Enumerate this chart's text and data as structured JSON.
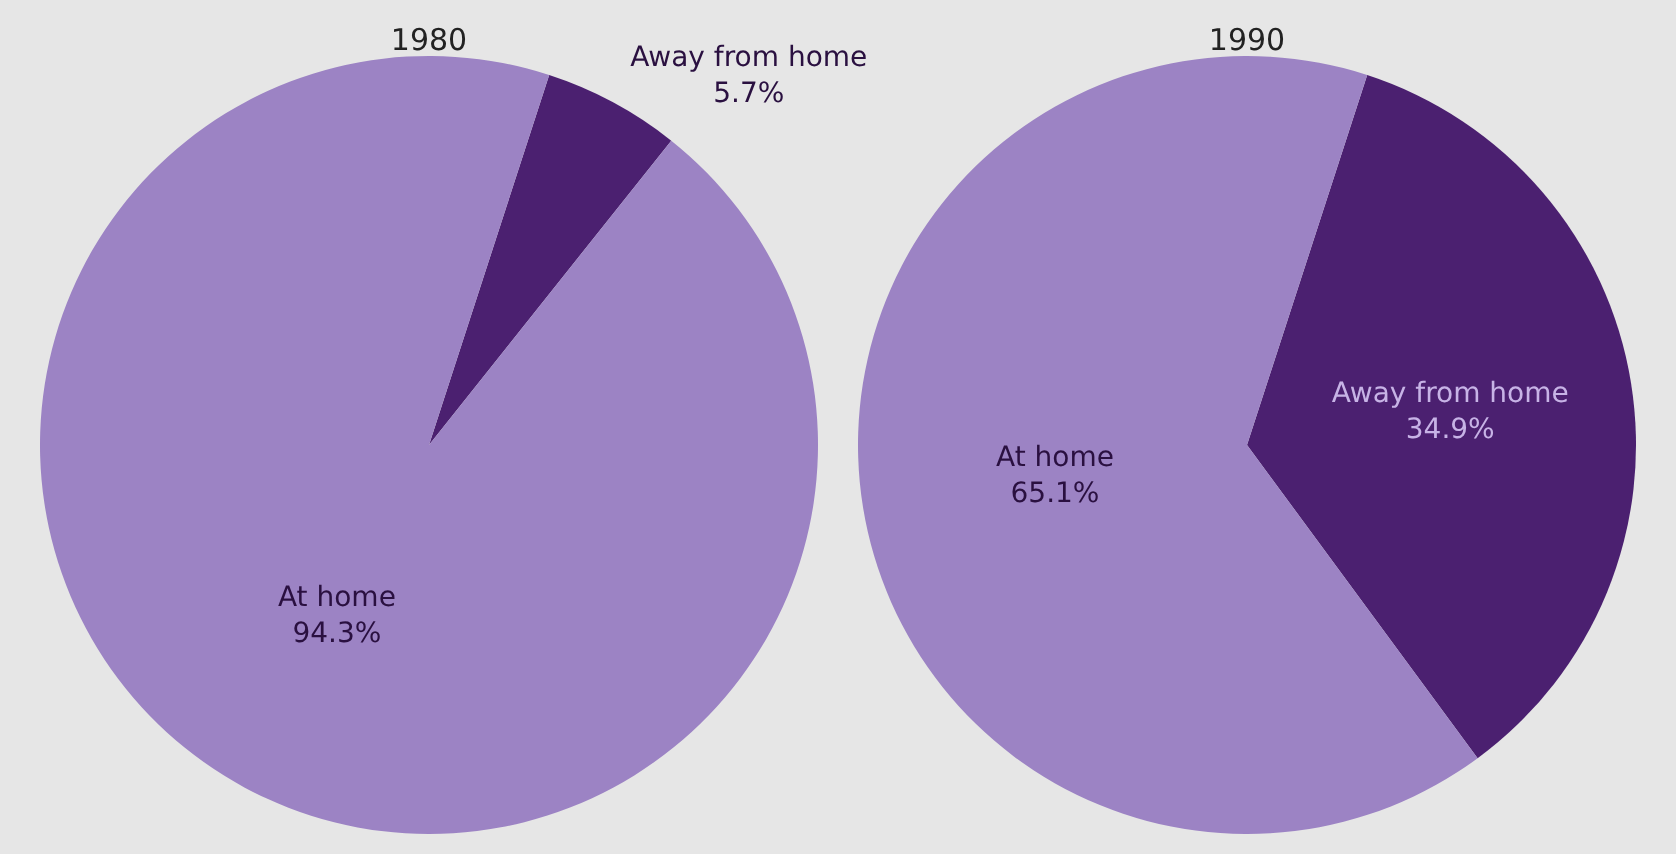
{
  "chart_data": [
    {
      "type": "pie",
      "title": "1980",
      "categories": [
        "Away from home",
        "At home"
      ],
      "values": [
        5.7,
        94.3
      ],
      "colors": [
        "#4b2070",
        "#9c83c4"
      ],
      "value_labels": [
        "5.7%",
        "94.3%"
      ]
    },
    {
      "type": "pie",
      "title": "1990",
      "categories": [
        "Away from home",
        "At home"
      ],
      "values": [
        34.9,
        65.1
      ],
      "colors": [
        "#4b2070",
        "#9c83c4"
      ],
      "value_labels": [
        "34.9%",
        "65.1%"
      ]
    }
  ]
}
